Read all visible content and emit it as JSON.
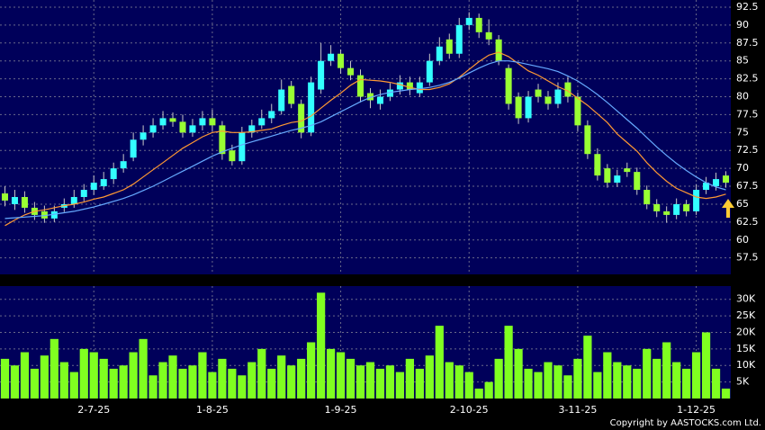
{
  "chart_data": [
    {
      "type": "candlestick",
      "up_color": "#33ffff",
      "down_color": "#99ff33",
      "wick_color": "#c8c8c8",
      "open": [
        66.5,
        65,
        66,
        64.5,
        64,
        63,
        64.5,
        65,
        66,
        67,
        67.5,
        68.5,
        70,
        71.5,
        74,
        75,
        76,
        77,
        76.5,
        75,
        76,
        77,
        76,
        72.5,
        71,
        75,
        76,
        77,
        78,
        81.5,
        79,
        75,
        81,
        85,
        86,
        84,
        83,
        80.5,
        79,
        80,
        81,
        82,
        80.5,
        82,
        85,
        88,
        86,
        90,
        91,
        89,
        88,
        84,
        80,
        77,
        81,
        80,
        79,
        82,
        80,
        76,
        72,
        70,
        68,
        70,
        69.5,
        67,
        65,
        64,
        63.5,
        65,
        64,
        67,
        67.5,
        69
      ],
      "high": [
        67.5,
        67,
        66.8,
        65.3,
        64.8,
        64.8,
        65.8,
        67,
        67.8,
        69,
        69.5,
        70.8,
        72,
        75,
        76,
        77,
        78,
        77.8,
        77.5,
        76.9,
        78,
        78.2,
        76.6,
        73.3,
        75.8,
        76.8,
        78.2,
        79,
        82.4,
        82.2,
        79.6,
        82.8,
        87.5,
        87.2,
        86.6,
        85,
        83.8,
        81.2,
        81,
        81.9,
        83,
        82.8,
        82.8,
        86,
        88.3,
        88.8,
        91,
        91.8,
        91.6,
        90.8,
        88.6,
        84.5,
        80.6,
        80.8,
        81.8,
        80.8,
        82,
        82.8,
        80.6,
        76.7,
        72.8,
        70.6,
        69.8,
        70.8,
        70.1,
        67.6,
        65.7,
        64.7,
        65.8,
        65.6,
        67.8,
        68.8,
        69.4,
        69.6
      ],
      "low": [
        64.7,
        64.2,
        63.8,
        62.8,
        62.4,
        62.5,
        63.9,
        64.5,
        65.4,
        66.3,
        67,
        67.8,
        69.4,
        71,
        73.2,
        74.3,
        75.4,
        75.8,
        74.3,
        74.4,
        75.3,
        75.2,
        71.2,
        70.4,
        70.5,
        74.3,
        75.5,
        76.3,
        77.5,
        78.4,
        74.2,
        74.5,
        80.4,
        84.3,
        83.2,
        82.3,
        79.2,
        78.4,
        78.2,
        79.4,
        80.3,
        80.2,
        80,
        81.5,
        84.4,
        85.3,
        85.4,
        89.3,
        88.2,
        87.2,
        84.4,
        78.2,
        76.2,
        76.4,
        79.2,
        78.2,
        78.4,
        79.2,
        75.2,
        71.3,
        68.3,
        67.3,
        67.4,
        68.8,
        66.3,
        64.3,
        63.2,
        62.4,
        62.9,
        63.3,
        63.5,
        66.4,
        66.9,
        67.3
      ],
      "close": [
        65.5,
        66,
        64.5,
        63.5,
        63,
        64,
        65,
        66,
        67,
        68,
        68.5,
        70,
        71,
        74,
        75,
        76,
        77,
        76.5,
        75,
        76,
        77,
        76,
        72,
        71,
        75,
        76,
        77,
        78,
        81,
        79,
        75,
        82,
        85,
        86,
        84,
        83,
        80,
        79.5,
        80,
        81,
        82,
        81,
        82,
        85,
        87,
        86,
        90,
        91,
        89,
        88,
        85,
        79,
        77,
        80,
        80,
        79,
        81,
        80,
        76,
        72,
        69,
        68,
        69,
        69.5,
        67,
        65,
        64,
        63.5,
        65,
        64,
        67,
        68,
        68.5,
        68
      ],
      "ma_lines": [
        {
          "color": "#ff9933",
          "values": [
            62,
            62.8,
            63.5,
            64,
            64.2,
            64.5,
            64.8,
            65,
            65.3,
            65.7,
            66,
            66.5,
            67,
            67.8,
            68.8,
            69.8,
            70.8,
            71.8,
            72.8,
            73.6,
            74.4,
            75,
            75.2,
            75,
            75,
            75.1,
            75.3,
            75.5,
            76,
            76.4,
            76.6,
            77.3,
            78.4,
            79.5,
            80.5,
            81.6,
            82.4,
            82.3,
            82.2,
            82,
            81.7,
            81.3,
            81,
            81,
            81.3,
            81.8,
            82.7,
            83.8,
            84.9,
            85.8,
            86.2,
            85.6,
            84.6,
            83.6,
            83,
            82.2,
            81.4,
            80.8,
            79.8,
            78.8,
            77.6,
            76.4,
            74.8,
            73.6,
            72.4,
            70.8,
            69.4,
            68.2,
            67.2,
            66.6,
            66,
            65.8,
            66,
            66.4
          ]
        },
        {
          "color": "#66aaff",
          "values": [
            63,
            63.1,
            63.2,
            63.3,
            63.4,
            63.6,
            63.8,
            64,
            64.3,
            64.6,
            65,
            65.4,
            65.8,
            66.3,
            66.9,
            67.5,
            68.2,
            68.9,
            69.6,
            70.3,
            71,
            71.7,
            72.3,
            72.8,
            73.3,
            73.7,
            74.1,
            74.5,
            74.9,
            75.3,
            75.6,
            76,
            76.5,
            77.2,
            77.9,
            78.6,
            79.3,
            79.9,
            80.3,
            80.6,
            80.8,
            81,
            81.1,
            81.3,
            81.6,
            82,
            82.6,
            83.3,
            84,
            84.6,
            85,
            85,
            84.8,
            84.5,
            84.2,
            83.9,
            83.5,
            82.9,
            82.2,
            81.3,
            80.3,
            79.2,
            78,
            76.8,
            75.6,
            74.3,
            73,
            71.8,
            70.7,
            69.7,
            68.8,
            68,
            67.4,
            67
          ]
        }
      ],
      "ylim": [
        55.2,
        93.5
      ],
      "yticks": [
        57.5,
        60,
        62.5,
        65,
        67.5,
        70,
        72.5,
        75,
        77.5,
        80,
        82.5,
        85,
        87.5,
        90,
        92.5
      ],
      "grid": true
    },
    {
      "type": "bar",
      "color": "#80ff20",
      "categories": [
        null,
        null,
        null,
        null,
        null,
        null,
        null,
        null,
        null,
        "2-7-25",
        null,
        null,
        null,
        null,
        null,
        null,
        null,
        null,
        null,
        null,
        null,
        "1-8-25",
        null,
        null,
        null,
        null,
        null,
        null,
        null,
        null,
        null,
        null,
        null,
        null,
        "1-9-25",
        null,
        null,
        null,
        null,
        null,
        null,
        null,
        null,
        null,
        null,
        null,
        null,
        "2-10-25",
        null,
        null,
        null,
        null,
        null,
        null,
        null,
        null,
        null,
        null,
        "3-11-25",
        null,
        null,
        null,
        null,
        null,
        null,
        null,
        null,
        null,
        null,
        null,
        "1-12-25",
        null,
        null,
        null
      ],
      "values": [
        12000,
        10000,
        14000,
        9000,
        13000,
        18000,
        11000,
        8000,
        15000,
        14000,
        12000,
        9000,
        10000,
        14000,
        18000,
        7000,
        11000,
        13000,
        9000,
        10000,
        14000,
        8000,
        12000,
        9000,
        7000,
        11000,
        15000,
        9000,
        13000,
        10000,
        12000,
        17000,
        32000,
        15000,
        14000,
        12000,
        10000,
        11000,
        9000,
        10000,
        8000,
        12000,
        9000,
        13000,
        22000,
        11000,
        10000,
        8000,
        3000,
        5000,
        12000,
        22000,
        15000,
        9000,
        8000,
        11000,
        10000,
        7000,
        12000,
        19000,
        8000,
        14000,
        11000,
        10000,
        9000,
        15000,
        12000,
        17000,
        11000,
        9000,
        14000,
        20000,
        9000,
        3000
      ],
      "ylim": [
        0,
        34000
      ],
      "yticks": [
        {
          "value": 5000,
          "label": "5K"
        },
        {
          "value": 10000,
          "label": "10K"
        },
        {
          "value": 15000,
          "label": "15K"
        },
        {
          "value": 20000,
          "label": "20K"
        },
        {
          "value": 25000,
          "label": "25K"
        },
        {
          "value": 30000,
          "label": "30K"
        }
      ],
      "grid": true
    }
  ],
  "footer": "Copyright by AASTOCKS.com Ltd."
}
